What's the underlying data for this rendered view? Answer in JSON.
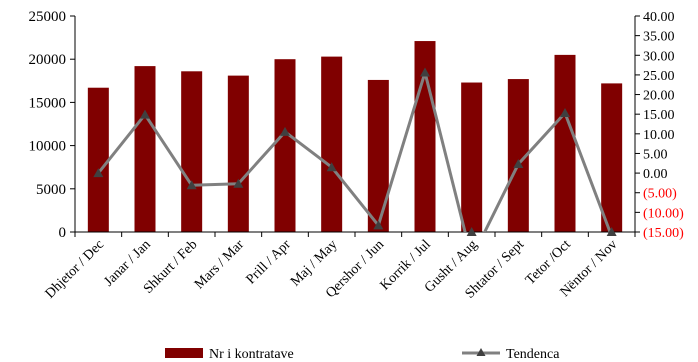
{
  "chart_data": {
    "type": "bar",
    "categories": [
      "Dhjetor / Dec",
      "Janar / Jan",
      "Shkurt / Feb",
      "Mars / Mar",
      "Prill / Apr",
      "Maj / May",
      "Qershor / Jun",
      "Korrik / Jul",
      "Gusht / Aug",
      "Shtator / Sept",
      "Tetor /Oct",
      "Nëntor / Nov"
    ],
    "series": [
      {
        "name": "Nr i kontratave",
        "type": "bar",
        "axis": "left",
        "color": "#800000",
        "values": [
          16700,
          19200,
          18600,
          18100,
          20000,
          20300,
          17600,
          22100,
          17300,
          17700,
          20500,
          17200
        ]
      },
      {
        "name": "Tendenca",
        "type": "line",
        "axis": "right",
        "color": "#808080",
        "marker": "triangle",
        "values": [
          0.0,
          14.9,
          -3.1,
          -2.7,
          10.5,
          1.5,
          -13.3,
          25.6,
          -21.7,
          2.3,
          15.3,
          -16.1
        ]
      }
    ],
    "left_axis": {
      "ylim": [
        0,
        25000
      ],
      "ticks": [
        "0",
        "5000",
        "10000",
        "15000",
        "20000",
        "25000"
      ]
    },
    "right_axis": {
      "ylim": [
        -15,
        40
      ],
      "ticks": [
        "(15.00)",
        "(10.00)",
        "(5.00)",
        "0.00",
        "5.00",
        "10.00",
        "15.00",
        "20.00",
        "25.00",
        "30.00",
        "35.00",
        "40.00"
      ],
      "negative_color": "#ff0000"
    },
    "grid": false,
    "legend": "bottom"
  }
}
